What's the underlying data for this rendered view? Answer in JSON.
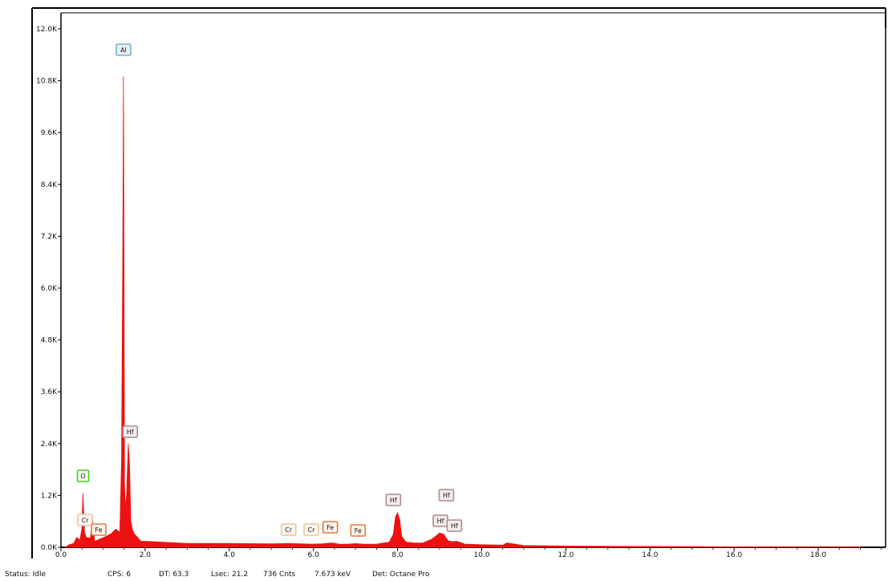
{
  "chart_data": {
    "type": "area",
    "title": "",
    "xlabel": "",
    "ylabel": "",
    "x_unit": "keV",
    "xlim": [
      0,
      19.6
    ],
    "ylim": [
      0,
      12000
    ],
    "x_ticks": [
      0,
      2,
      4,
      6,
      8,
      10,
      12,
      14,
      16,
      18
    ],
    "x_tick_labels": [
      "0.0",
      "2.0",
      "4.0",
      "6.0",
      "8.0",
      "10.0",
      "12.0",
      "14.0",
      "16.0",
      "18.0"
    ],
    "y_ticks": [
      0,
      1200,
      2400,
      3600,
      4800,
      6000,
      7200,
      8400,
      9600,
      10800,
      12000
    ],
    "y_tick_labels": [
      "0.0K",
      "1.2K",
      "2.4K",
      "3.6K",
      "4.8K",
      "6.0K",
      "7.2K",
      "8.4K",
      "9.6K",
      "10.8K",
      "12.0K"
    ],
    "grid": false,
    "legend": "none",
    "colors": {
      "spectrum": "#ee1111",
      "axis": "#000000",
      "frame": "#000000"
    },
    "series": [
      {
        "x": [
          0.1,
          0.2,
          0.3,
          0.38,
          0.45,
          0.5,
          0.52,
          0.56,
          0.6,
          0.7,
          0.75,
          0.8,
          1.0,
          1.2,
          1.3,
          1.4,
          1.44,
          1.47,
          1.486,
          1.5,
          1.51,
          1.53,
          1.56,
          1.6,
          1.63,
          1.66,
          1.7,
          1.75,
          1.8,
          1.9,
          2.0,
          3.0,
          4.0,
          5.0,
          5.41,
          5.9,
          6.0,
          6.2,
          6.4,
          6.5,
          6.6,
          6.8,
          7.0,
          7.2,
          7.5,
          7.8,
          7.9,
          7.95,
          8.0,
          8.05,
          8.1,
          8.2,
          8.4,
          8.6,
          8.8,
          8.9,
          9.0,
          9.1,
          9.2,
          9.3,
          9.4,
          9.5,
          9.6,
          10.0,
          10.5,
          10.6,
          11.0,
          12.0,
          13.0,
          14.0,
          15.0,
          16.0,
          17.0,
          18.0,
          19.0
        ],
        "y": [
          0,
          60,
          90,
          230,
          160,
          450,
          1250,
          350,
          230,
          210,
          700,
          140,
          220,
          320,
          420,
          350,
          2000,
          7000,
          10900,
          6000,
          1500,
          900,
          1200,
          2400,
          1900,
          600,
          400,
          300,
          250,
          140,
          140,
          90,
          90,
          80,
          90,
          75,
          75,
          80,
          100,
          95,
          75,
          70,
          85,
          70,
          75,
          120,
          300,
          700,
          800,
          650,
          250,
          120,
          100,
          100,
          180,
          250,
          330,
          300,
          150,
          130,
          140,
          110,
          75,
          60,
          50,
          100,
          40,
          30,
          25,
          20,
          15,
          12,
          10,
          8,
          5
        ]
      }
    ],
    "annotations": [
      {
        "label": "Al",
        "x": 1.486,
        "line_color": "#7fb2c6",
        "fill": "#e4f0f5"
      },
      {
        "label": "Hf",
        "x": 1.645,
        "line_color": "#b08a8a",
        "fill": "#f4ecec"
      },
      {
        "label": "O",
        "x": 0.525,
        "line_color": "#44cc22",
        "fill": "#f2ffee"
      },
      {
        "label": "Cr",
        "x": 0.573,
        "line_color": "#e8c4a0",
        "fill": "#fff8f0"
      },
      {
        "label": "Fe",
        "x": 0.705,
        "line_color": "#e07a44",
        "fill": "#fff3ec"
      },
      {
        "label": "Cr",
        "x": 5.41,
        "line_color": "#e8c4a0",
        "fill": "#fff8f0"
      },
      {
        "label": "Cr",
        "x": 5.95,
        "line_color": "#e8c4a0",
        "fill": "#fff8f0"
      },
      {
        "label": "Fe",
        "x": 6.4,
        "line_color": "#e07a44",
        "fill": "#fff3ec"
      },
      {
        "label": "Fe",
        "x": 7.06,
        "line_color": "#e07a44",
        "fill": "#fff3ec"
      },
      {
        "label": "Hf",
        "x": 7.9,
        "line_color": "#b08a8a",
        "fill": "#f4ecec"
      },
      {
        "label": "Hf",
        "x": 9.02,
        "line_color": "#b08a8a",
        "fill": "#f4ecec"
      },
      {
        "label": "Hf",
        "x": 9.16,
        "line_color": "#b08a8a",
        "fill": "#f4ecec"
      },
      {
        "label": "Hf",
        "x": 9.35,
        "line_color": "#b08a8a",
        "fill": "#f4ecec"
      }
    ]
  },
  "status": {
    "state": "Status: Idle",
    "cps": "CPS: 6",
    "dt": "DT: 63.3",
    "lsec": "Lsec: 21.2",
    "cnts": "736 Cnts",
    "kev": "7.673 keV",
    "det": "Det: Octane Pro"
  }
}
